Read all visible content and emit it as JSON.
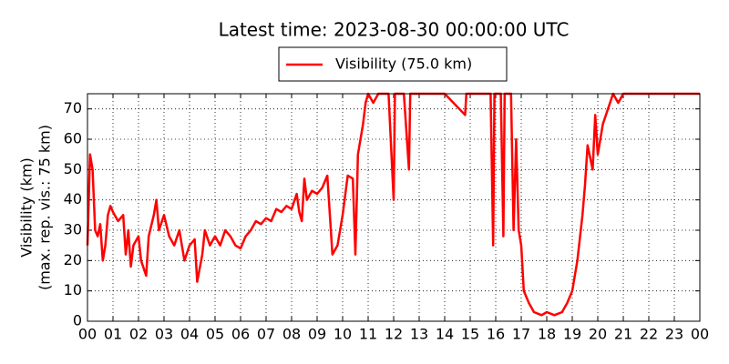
{
  "chart_data": {
    "type": "line",
    "title": "Latest time: 2023-08-30 00:00:00 UTC",
    "y_label": [
      "Visibility (km)",
      "(max. rep. vis.: 75 km)"
    ],
    "x": [
      0,
      0.1,
      0.2,
      0.3,
      0.4,
      0.5,
      0.6,
      0.7,
      0.8,
      0.9,
      1.0,
      1.2,
      1.4,
      1.5,
      1.6,
      1.7,
      1.8,
      2.0,
      2.1,
      2.3,
      2.4,
      2.6,
      2.7,
      2.8,
      3.0,
      3.2,
      3.4,
      3.6,
      3.8,
      4.0,
      4.2,
      4.3,
      4.5,
      4.6,
      4.8,
      5.0,
      5.2,
      5.4,
      5.6,
      5.8,
      6.0,
      6.2,
      6.4,
      6.6,
      6.8,
      7.0,
      7.2,
      7.4,
      7.6,
      7.8,
      8.0,
      8.2,
      8.3,
      8.4,
      8.5,
      8.6,
      8.8,
      9.0,
      9.2,
      9.4,
      9.5,
      9.6,
      9.8,
      10.0,
      10.2,
      10.4,
      10.5,
      10.6,
      10.8,
      10.9,
      11.0,
      11.2,
      11.4,
      11.6,
      11.8,
      12.0,
      12.05,
      12.4,
      12.6,
      12.65,
      13.0,
      13.2,
      14.0,
      14.8,
      14.85,
      15.0,
      15.8,
      15.9,
      15.95,
      16.2,
      16.3,
      16.35,
      16.6,
      16.7,
      16.8,
      16.9,
      17.0,
      17.1,
      17.3,
      17.5,
      17.8,
      18.0,
      18.3,
      18.6,
      18.8,
      19.0,
      19.2,
      19.4,
      19.5,
      19.6,
      19.8,
      19.9,
      20.0,
      20.2,
      20.4,
      20.6,
      20.8,
      21.0,
      21.5,
      22,
      23,
      24
    ],
    "series": [
      {
        "name": "Visibility (75.0 km)",
        "color": "#ff0000",
        "values": [
          25,
          55,
          50,
          30,
          28,
          32,
          20,
          25,
          35,
          38,
          36,
          33,
          35,
          22,
          30,
          18,
          25,
          28,
          20,
          15,
          28,
          35,
          40,
          30,
          35,
          28,
          25,
          30,
          20,
          25,
          27,
          13,
          22,
          30,
          25,
          28,
          25,
          30,
          28,
          25,
          24,
          28,
          30,
          33,
          32,
          34,
          33,
          37,
          36,
          38,
          37,
          42,
          36,
          33,
          47,
          40,
          43,
          42,
          44,
          48,
          35,
          22,
          25,
          35,
          48,
          47,
          22,
          55,
          65,
          72,
          75,
          72,
          75,
          75,
          75,
          40,
          75,
          75,
          50,
          75,
          75,
          75,
          75,
          68,
          75,
          75,
          75,
          25,
          75,
          75,
          28,
          75,
          75,
          30,
          60,
          30,
          25,
          10,
          6,
          3,
          2,
          3,
          2,
          3,
          6,
          10,
          20,
          35,
          45,
          58,
          50,
          68,
          55,
          65,
          70,
          75,
          72,
          75,
          75,
          75,
          75,
          75
        ]
      }
    ],
    "xlim": [
      0,
      24
    ],
    "ylim": [
      0,
      75
    ],
    "xticks": [
      {
        "value": 0,
        "label": "00"
      },
      {
        "value": 1,
        "label": "01"
      },
      {
        "value": 2,
        "label": "02"
      },
      {
        "value": 3,
        "label": "03"
      },
      {
        "value": 4,
        "label": "04"
      },
      {
        "value": 5,
        "label": "05"
      },
      {
        "value": 6,
        "label": "06"
      },
      {
        "value": 7,
        "label": "07"
      },
      {
        "value": 8,
        "label": "08"
      },
      {
        "value": 9,
        "label": "09"
      },
      10,
      11,
      12,
      13,
      14,
      15,
      16,
      17,
      18,
      19,
      20,
      21,
      22,
      23,
      {
        "value": 24,
        "label": "00"
      }
    ],
    "yticks": [
      0,
      10,
      20,
      30,
      40,
      50,
      60,
      70
    ],
    "grid": true
  }
}
